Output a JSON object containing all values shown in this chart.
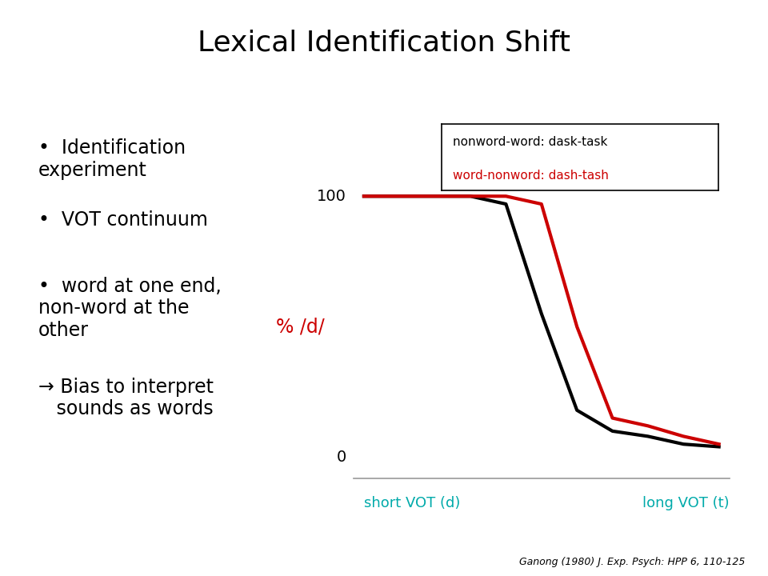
{
  "title": "Lexical Identification Shift",
  "title_fontsize": 26,
  "title_color": "#000000",
  "background_color": "#ffffff",
  "bullet_points": [
    "Identification\nexperiment",
    "VOT continuum",
    "word at one end,\nnon-word at the\nother"
  ],
  "arrow_text": "→ Bias to interpret\n   sounds as words",
  "ylabel": "% /d/",
  "ylabel_color": "#cc0000",
  "y100_label": "100",
  "y0_label": "0",
  "xlabel_left": "short VOT (d)",
  "xlabel_right": "long VOT (t)",
  "xlabel_color": "#00aaaa",
  "legend_line1": "nonword-word: dask-task",
  "legend_line2": "word-nonword: dash-tash",
  "legend_color1": "#000000",
  "legend_color2": "#cc0000",
  "black_x": [
    0,
    3,
    4,
    5,
    6,
    7,
    8,
    9,
    10
  ],
  "black_y": [
    100,
    100,
    97,
    55,
    18,
    10,
    8,
    5,
    4
  ],
  "red_x": [
    0,
    3,
    4,
    5,
    6,
    7,
    8,
    9,
    10
  ],
  "red_y": [
    100,
    100,
    100,
    97,
    50,
    15,
    12,
    8,
    5
  ],
  "line_width": 3.0,
  "citation": "Ganong (1980) J. Exp. Psych: HPP 6, 110-125",
  "citation_fontsize": 9,
  "bullet_fontsize": 17,
  "arrow_fontsize": 17
}
